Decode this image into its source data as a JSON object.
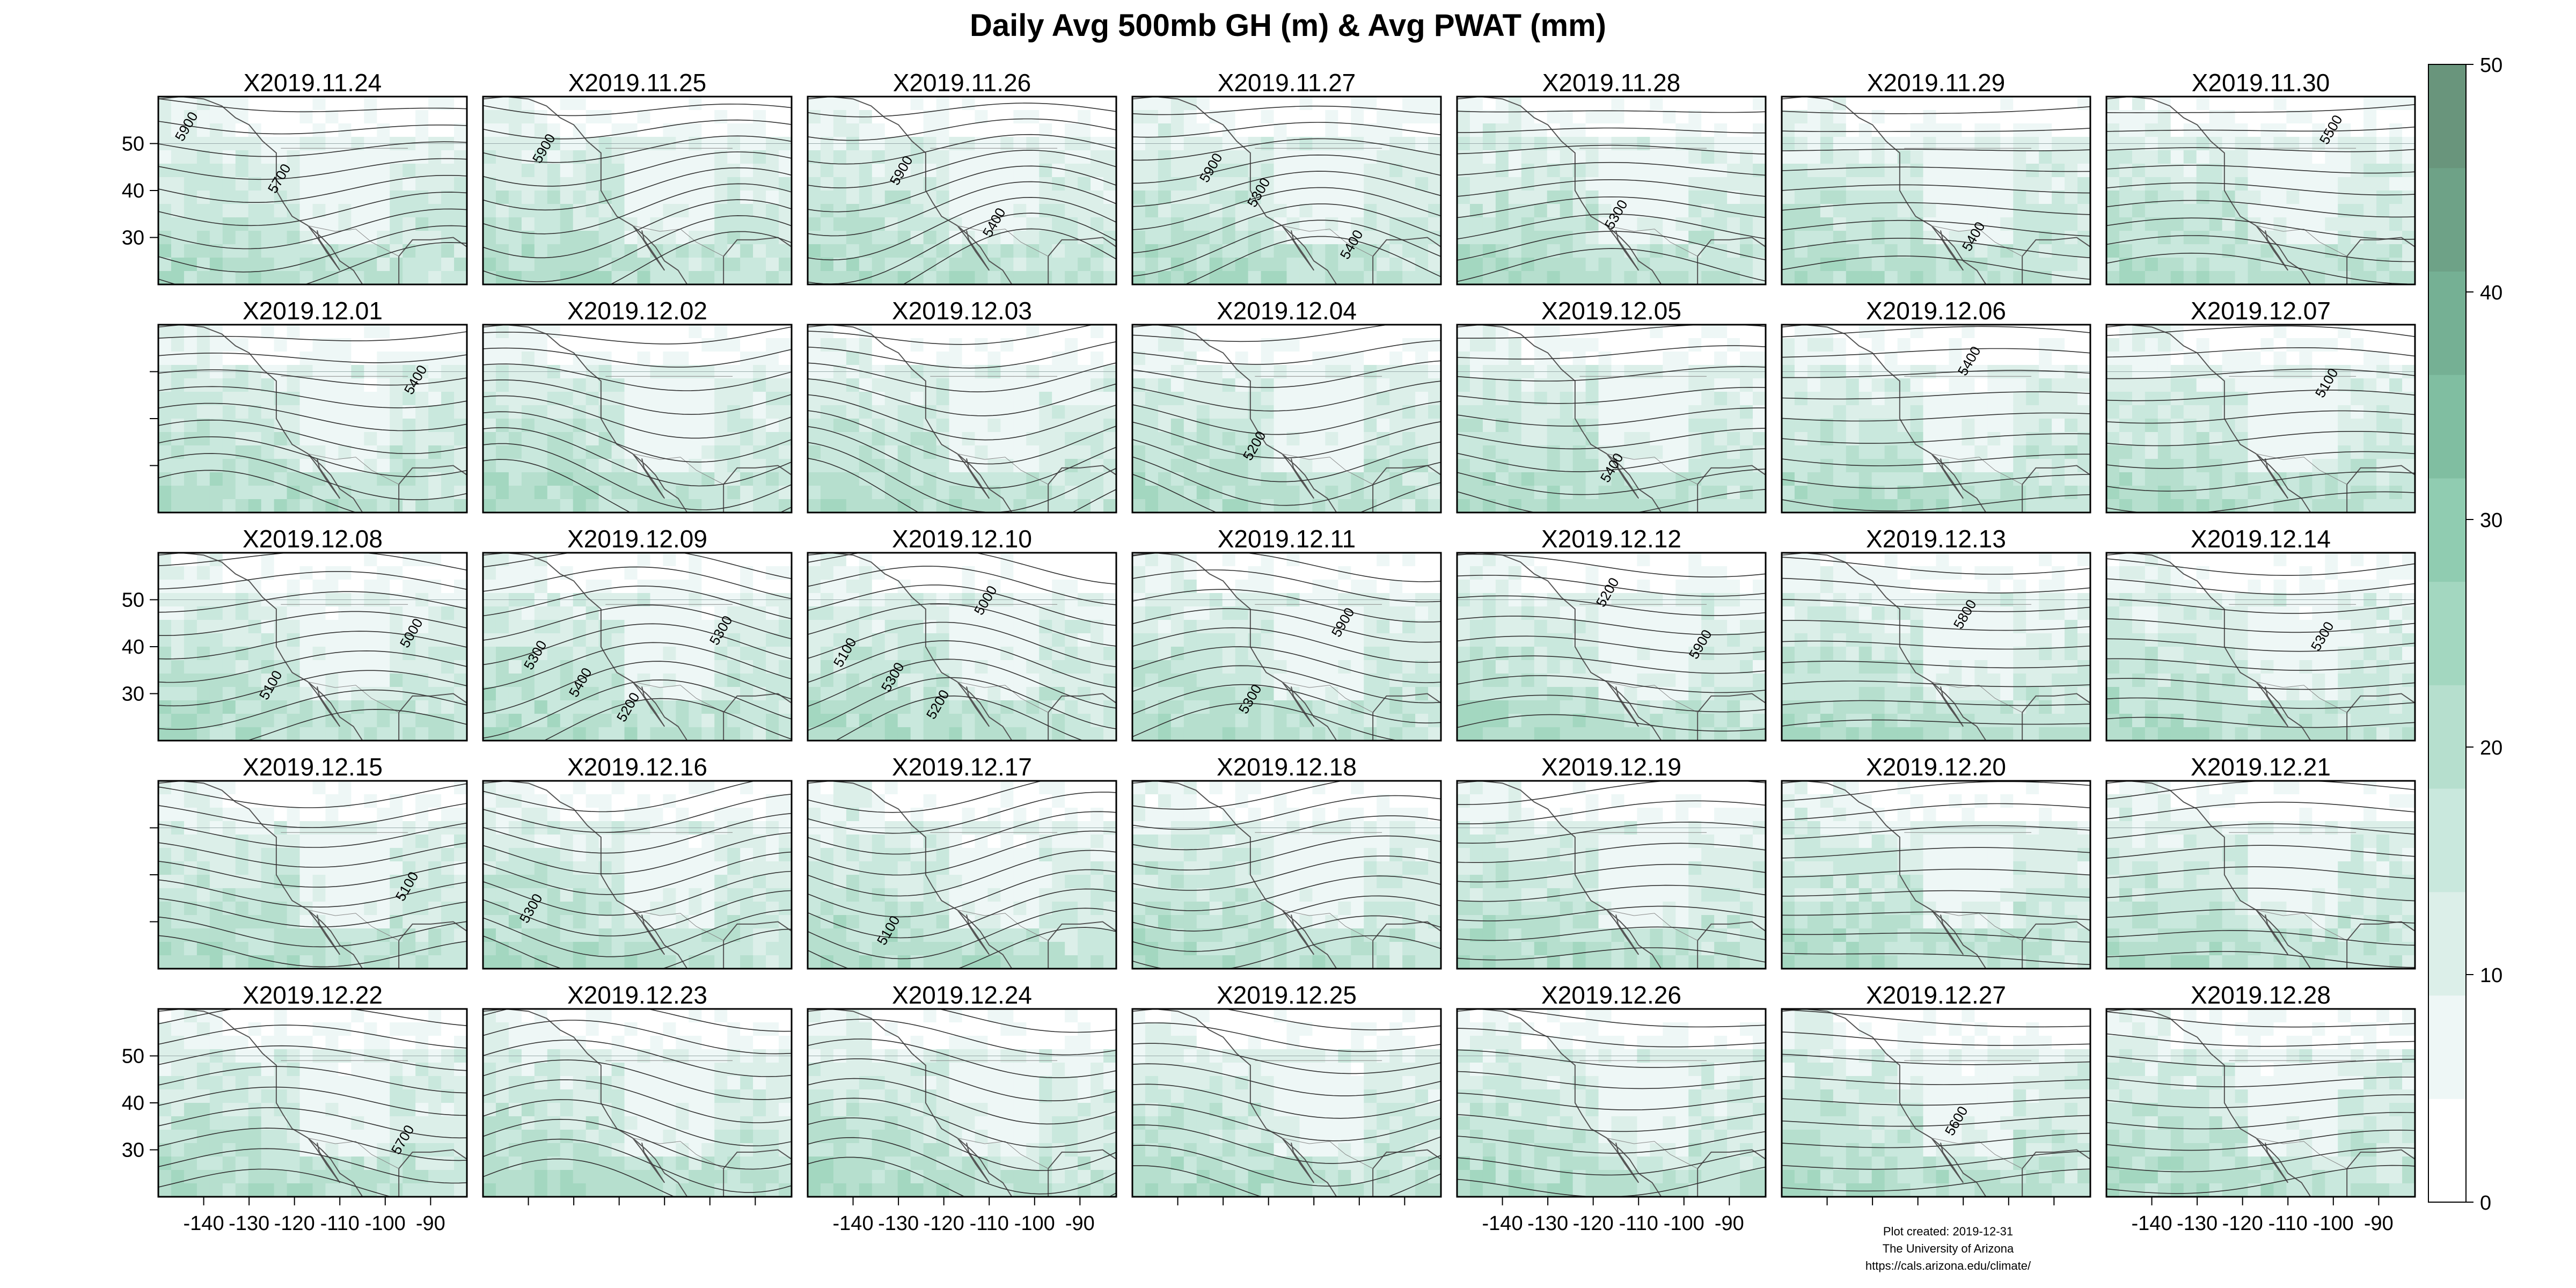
{
  "title": "Daily Avg 500mb GH (m) & Avg PWAT (mm)",
  "panels": [
    {
      "label": "X2019.11.24",
      "contours": [
        "5900",
        "5700"
      ]
    },
    {
      "label": "X2019.11.25",
      "contours": [
        "5900"
      ]
    },
    {
      "label": "X2019.11.26",
      "contours": [
        "5900",
        "5400"
      ]
    },
    {
      "label": "X2019.11.27",
      "contours": [
        "5300",
        "5400",
        "5900"
      ]
    },
    {
      "label": "X2019.11.28",
      "contours": [
        "5300"
      ]
    },
    {
      "label": "X2019.11.29",
      "contours": [
        "5400"
      ]
    },
    {
      "label": "X2019.11.30",
      "contours": [
        "5500"
      ]
    },
    {
      "label": "X2019.12.01",
      "contours": [
        "5400"
      ]
    },
    {
      "label": "X2019.12.02",
      "contours": []
    },
    {
      "label": "X2019.12.03",
      "contours": []
    },
    {
      "label": "X2019.12.04",
      "contours": [
        "5200"
      ]
    },
    {
      "label": "X2019.12.05",
      "contours": [
        "5400"
      ]
    },
    {
      "label": "X2019.12.06",
      "contours": [
        "5400"
      ]
    },
    {
      "label": "X2019.12.07",
      "contours": [
        "5100"
      ]
    },
    {
      "label": "X2019.12.08",
      "contours": [
        "5000",
        "5100"
      ]
    },
    {
      "label": "X2019.12.09",
      "contours": [
        "5300",
        "5200",
        "5300",
        "5400"
      ]
    },
    {
      "label": "X2019.12.10",
      "contours": [
        "5300",
        "5000",
        "5100",
        "5200"
      ]
    },
    {
      "label": "X2019.12.11",
      "contours": [
        "5300",
        "5900"
      ]
    },
    {
      "label": "X2019.12.12",
      "contours": [
        "5200",
        "5900"
      ]
    },
    {
      "label": "X2019.12.13",
      "contours": [
        "5800"
      ]
    },
    {
      "label": "X2019.12.14",
      "contours": [
        "5300"
      ]
    },
    {
      "label": "X2019.12.15",
      "contours": [
        "5100"
      ]
    },
    {
      "label": "X2019.12.16",
      "contours": [
        "5300"
      ]
    },
    {
      "label": "X2019.12.17",
      "contours": [
        "5100"
      ]
    },
    {
      "label": "X2019.12.18",
      "contours": []
    },
    {
      "label": "X2019.12.19",
      "contours": []
    },
    {
      "label": "X2019.12.20",
      "contours": []
    },
    {
      "label": "X2019.12.21",
      "contours": []
    },
    {
      "label": "X2019.12.22",
      "contours": [
        "5700"
      ]
    },
    {
      "label": "X2019.12.23",
      "contours": []
    },
    {
      "label": "X2019.12.24",
      "contours": []
    },
    {
      "label": "X2019.12.25",
      "contours": []
    },
    {
      "label": "X2019.12.26",
      "contours": []
    },
    {
      "label": "X2019.12.27",
      "contours": [
        "5600"
      ]
    },
    {
      "label": "X2019.12.28",
      "contours": []
    }
  ],
  "axes": {
    "lon_ticks": [
      -140,
      -130,
      -120,
      -110,
      -100,
      -90
    ],
    "lat_ticks": [
      30,
      40,
      50
    ],
    "lon_labeled_columns": [
      0,
      2,
      4,
      6
    ],
    "lat_labeled_rows": [
      0,
      2,
      4
    ]
  },
  "colorbar": {
    "ticks": [
      0,
      10,
      20,
      30,
      40,
      50
    ],
    "min": 0,
    "max": 50,
    "colors": [
      "#ffffff",
      "#eef7f6",
      "#dcefe9",
      "#c9e8dd",
      "#b6dfce",
      "#a3d7c0",
      "#90ccb1",
      "#80bea1",
      "#75b094",
      "#6ea287",
      "#69957c"
    ]
  },
  "credits": {
    "line1": "Plot created: 2019-12-31",
    "line2": "The University of Arizona",
    "line3": "https://cals.arizona.edu/climate/"
  }
}
